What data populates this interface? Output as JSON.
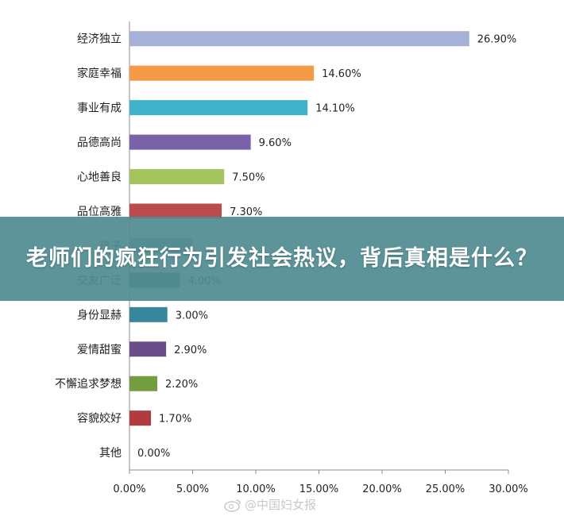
{
  "chart_data": {
    "type": "bar",
    "orientation": "horizontal",
    "categories": [
      "经济独立",
      "家庭幸福",
      "事业有成",
      "品德高尚",
      "心地善良",
      "品位高雅",
      "孩子",
      "交友广泛",
      "身份显赫",
      "爱情甜蜜",
      "不懈追求梦想",
      "容貌姣好",
      "其他"
    ],
    "values": [
      26.9,
      14.6,
      14.1,
      9.6,
      7.5,
      7.3,
      5.0,
      4.0,
      3.0,
      2.9,
      2.2,
      1.7,
      0.0
    ],
    "value_labels": [
      "26.90%",
      "14.60%",
      "14.10%",
      "9.60%",
      "7.50%",
      "7.30%",
      "",
      "4.00%",
      "3.00%",
      "2.90%",
      "2.20%",
      "1.70%",
      "0.00%"
    ],
    "colors": [
      "#a6b1d8",
      "#f59a46",
      "#3fb1c8",
      "#7a62a8",
      "#a3c45d",
      "#bc4b4b",
      "#8aa8c8",
      "#4f6e55",
      "#37869c",
      "#6a4e89",
      "#739d3e",
      "#b13b3e",
      "#999999"
    ],
    "xlim": [
      0,
      30
    ],
    "xticks": [
      "0.00%",
      "5.00%",
      "10.00%",
      "15.00%",
      "20.00%",
      "25.00%",
      "30.00%"
    ],
    "grid": false,
    "legend": "none"
  },
  "banner": {
    "text": "老师们的疯狂行为引发社会热议，背后真相是什么？"
  },
  "watermark": {
    "text": "@中国妇女报",
    "icon": "weibo-icon"
  }
}
